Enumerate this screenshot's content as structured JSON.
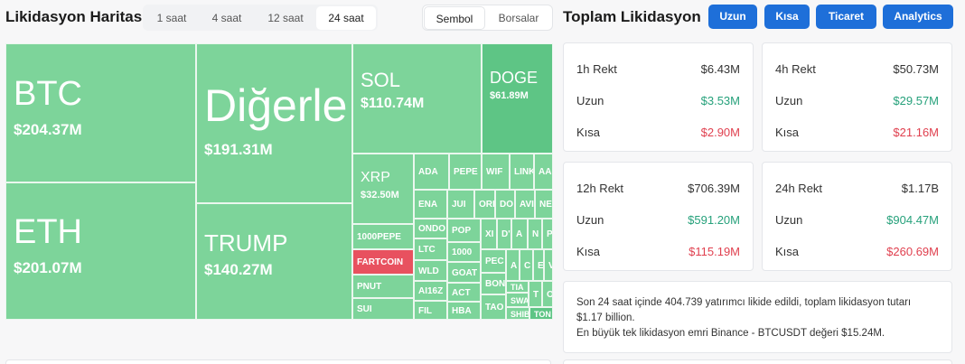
{
  "header": {
    "title": "Likidasyon Haritası",
    "time_tabs": [
      "1 saat",
      "4 saat",
      "12 saat",
      "24 saat"
    ],
    "view_tabs": [
      "Sembol",
      "Borsalar"
    ]
  },
  "treemap": {
    "tiles": [
      {
        "label": "BTC",
        "value": "$204.37M"
      },
      {
        "label": "ETH",
        "value": "$201.07M"
      },
      {
        "label": "Diğerle",
        "value": "$191.31M"
      },
      {
        "label": "TRUMP",
        "value": "$140.27M"
      },
      {
        "label": "SOL",
        "value": "$110.74M"
      },
      {
        "label": "DOGE",
        "value": "$61.89M"
      },
      {
        "label": "XRP",
        "value": "$32.50M"
      },
      {
        "label": "1000PEPE"
      },
      {
        "label": "FARTCOIN"
      },
      {
        "label": "PNUT"
      },
      {
        "label": "SUI"
      },
      {
        "label": "ADA"
      },
      {
        "label": "PEPE"
      },
      {
        "label": "WIF"
      },
      {
        "label": "LINK"
      },
      {
        "label": "AA"
      },
      {
        "label": "ENA"
      },
      {
        "label": "ONDO"
      },
      {
        "label": "LTC"
      },
      {
        "label": "WLD"
      },
      {
        "label": "AI16Z"
      },
      {
        "label": "FIL"
      },
      {
        "label": "JUI"
      },
      {
        "label": "POP"
      },
      {
        "label": "1000"
      },
      {
        "label": "GOAT"
      },
      {
        "label": "ACT"
      },
      {
        "label": "HBA"
      },
      {
        "label": "ORI"
      },
      {
        "label": "DO"
      },
      {
        "label": "AVI"
      },
      {
        "label": "NE"
      },
      {
        "label": "XI"
      },
      {
        "label": "D'"
      },
      {
        "label": "A"
      },
      {
        "label": "N"
      },
      {
        "label": "P"
      },
      {
        "label": "PEC"
      },
      {
        "label": "A"
      },
      {
        "label": "C"
      },
      {
        "label": "E"
      },
      {
        "label": "V"
      },
      {
        "label": "BON"
      },
      {
        "label": "TAO"
      },
      {
        "label": "TIA"
      },
      {
        "label": "SWA"
      },
      {
        "label": "SHIB"
      },
      {
        "label": "T"
      },
      {
        "label": "O"
      },
      {
        "label": "TON"
      }
    ]
  },
  "panel": {
    "title": "Toplam Likidasyon",
    "buttons": [
      "Uzun",
      "Kısa",
      "Ticaret",
      "Analytics"
    ],
    "cards": [
      {
        "title": "1h Rekt",
        "total": "$6.43M",
        "long_label": "Uzun",
        "long": "$3.53M",
        "short_label": "Kısa",
        "short": "$2.90M"
      },
      {
        "title": "4h Rekt",
        "total": "$50.73M",
        "long_label": "Uzun",
        "long": "$29.57M",
        "short_label": "Kısa",
        "short": "$21.16M"
      },
      {
        "title": "12h Rekt",
        "total": "$706.39M",
        "long_label": "Uzun",
        "long": "$591.20M",
        "short_label": "Kısa",
        "short": "$115.19M"
      },
      {
        "title": "24h Rekt",
        "total": "$1.17B",
        "long_label": "Uzun",
        "long": "$904.47M",
        "short_label": "Kısa",
        "short": "$260.69M"
      }
    ],
    "summary": [
      "Son 24 saat içinde 404.739 yatırımcı likide edildi, toplam likidasyon tutarı $1.17 billion.",
      "En büyük tek likidasyon emri Binance - BTCUSDT değeri $15.24M."
    ]
  }
}
